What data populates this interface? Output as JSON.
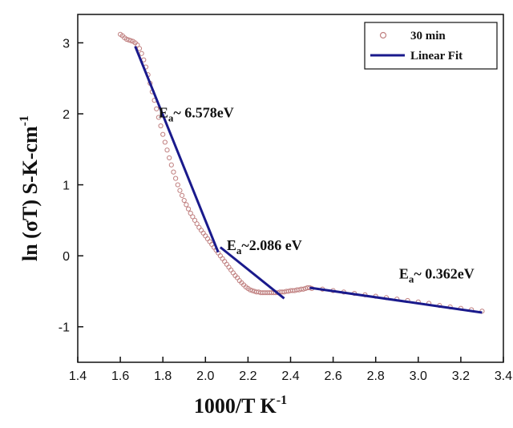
{
  "chart_data": {
    "type": "scatter",
    "xlabel": "1000/T K",
    "xlabel_sup": "-1",
    "ylabel": "ln (σT) S-K-cm",
    "ylabel_sup": "-1",
    "xlim": [
      1.4,
      3.4
    ],
    "ylim": [
      -1.5,
      3.4
    ],
    "xticks": [
      "1.4",
      "1.6",
      "1.8",
      "2.0",
      "2.2",
      "2.4",
      "2.6",
      "2.8",
      "3.0",
      "3.2",
      "3.4"
    ],
    "yticks": [
      "-1",
      "0",
      "1",
      "2",
      "3"
    ],
    "grid": false,
    "legend_position": "top-right",
    "legend": [
      {
        "label": "30 min",
        "marker": "circle",
        "color": "#c08080"
      },
      {
        "label": "Linear Fit",
        "marker": "line",
        "color": "#1a1a8c"
      }
    ],
    "colors": {
      "data": "#c08080",
      "fit": "#1a1a8c",
      "axis": "#111111"
    },
    "series": [
      {
        "name": "30 min",
        "points": [
          [
            1.6,
            3.12
          ],
          [
            1.61,
            3.1
          ],
          [
            1.62,
            3.07
          ],
          [
            1.63,
            3.05
          ],
          [
            1.64,
            3.04
          ],
          [
            1.65,
            3.03
          ],
          [
            1.66,
            3.02
          ],
          [
            1.67,
            3.0
          ],
          [
            1.68,
            2.97
          ],
          [
            1.69,
            2.92
          ],
          [
            1.7,
            2.85
          ],
          [
            1.71,
            2.76
          ],
          [
            1.72,
            2.66
          ],
          [
            1.73,
            2.55
          ],
          [
            1.74,
            2.43
          ],
          [
            1.75,
            2.31
          ],
          [
            1.76,
            2.19
          ],
          [
            1.77,
            2.07
          ],
          [
            1.78,
            1.95
          ],
          [
            1.79,
            1.83
          ],
          [
            1.8,
            1.71
          ],
          [
            1.81,
            1.6
          ],
          [
            1.82,
            1.49
          ],
          [
            1.83,
            1.38
          ],
          [
            1.84,
            1.28
          ],
          [
            1.85,
            1.18
          ],
          [
            1.86,
            1.09
          ],
          [
            1.87,
            1.0
          ],
          [
            1.88,
            0.92
          ],
          [
            1.89,
            0.85
          ],
          [
            1.9,
            0.78
          ],
          [
            1.91,
            0.72
          ],
          [
            1.92,
            0.66
          ],
          [
            1.93,
            0.6
          ],
          [
            1.94,
            0.55
          ],
          [
            1.95,
            0.5
          ],
          [
            1.96,
            0.45
          ],
          [
            1.97,
            0.4
          ],
          [
            1.98,
            0.36
          ],
          [
            1.99,
            0.32
          ],
          [
            2.0,
            0.28
          ],
          [
            2.01,
            0.24
          ],
          [
            2.02,
            0.2
          ],
          [
            2.03,
            0.16
          ],
          [
            2.04,
            0.12
          ],
          [
            2.05,
            0.08
          ],
          [
            2.06,
            0.04
          ],
          [
            2.07,
            0.0
          ],
          [
            2.08,
            -0.04
          ],
          [
            2.09,
            -0.08
          ],
          [
            2.1,
            -0.12
          ],
          [
            2.11,
            -0.16
          ],
          [
            2.12,
            -0.2
          ],
          [
            2.13,
            -0.24
          ],
          [
            2.14,
            -0.28
          ],
          [
            2.15,
            -0.31
          ],
          [
            2.16,
            -0.35
          ],
          [
            2.17,
            -0.38
          ],
          [
            2.18,
            -0.41
          ],
          [
            2.19,
            -0.44
          ],
          [
            2.2,
            -0.46
          ],
          [
            2.21,
            -0.48
          ],
          [
            2.22,
            -0.49
          ],
          [
            2.23,
            -0.5
          ],
          [
            2.24,
            -0.51
          ],
          [
            2.25,
            -0.51
          ],
          [
            2.26,
            -0.52
          ],
          [
            2.27,
            -0.52
          ],
          [
            2.28,
            -0.52
          ],
          [
            2.29,
            -0.52
          ],
          [
            2.3,
            -0.52
          ],
          [
            2.31,
            -0.52
          ],
          [
            2.32,
            -0.52
          ],
          [
            2.33,
            -0.52
          ],
          [
            2.34,
            -0.52
          ],
          [
            2.35,
            -0.51
          ],
          [
            2.36,
            -0.51
          ],
          [
            2.37,
            -0.51
          ],
          [
            2.38,
            -0.5
          ],
          [
            2.39,
            -0.5
          ],
          [
            2.4,
            -0.49
          ],
          [
            2.41,
            -0.49
          ],
          [
            2.42,
            -0.49
          ],
          [
            2.43,
            -0.48
          ],
          [
            2.44,
            -0.48
          ],
          [
            2.45,
            -0.47
          ],
          [
            2.46,
            -0.47
          ],
          [
            2.47,
            -0.46
          ],
          [
            2.48,
            -0.45
          ],
          [
            2.49,
            -0.45
          ],
          [
            2.5,
            -0.46
          ],
          [
            2.55,
            -0.47
          ],
          [
            2.6,
            -0.49
          ],
          [
            2.65,
            -0.51
          ],
          [
            2.7,
            -0.53
          ],
          [
            2.75,
            -0.55
          ],
          [
            2.8,
            -0.57
          ],
          [
            2.85,
            -0.59
          ],
          [
            2.9,
            -0.61
          ],
          [
            2.95,
            -0.63
          ],
          [
            3.0,
            -0.65
          ],
          [
            3.05,
            -0.67
          ],
          [
            3.1,
            -0.7
          ],
          [
            3.15,
            -0.72
          ],
          [
            3.2,
            -0.74
          ],
          [
            3.25,
            -0.76
          ],
          [
            3.3,
            -0.78
          ]
        ]
      }
    ],
    "fits": [
      {
        "name": "Linear Fit",
        "x": [
          1.67,
          2.06
        ],
        "y": [
          2.95,
          0.05
        ],
        "label": "E",
        "label_sub": "a",
        "label_rest": "~ 6.578eV",
        "label_at": [
          1.78,
          1.95
        ]
      },
      {
        "name": "Linear Fit",
        "x": [
          2.07,
          2.37
        ],
        "y": [
          0.12,
          -0.6
        ],
        "label": "E",
        "label_sub": "a",
        "label_rest": "~2.086 eV",
        "label_at": [
          2.1,
          0.08
        ]
      },
      {
        "name": "Linear Fit",
        "x": [
          2.49,
          3.3
        ],
        "y": [
          -0.45,
          -0.8
        ],
        "label": "E",
        "label_sub": "a",
        "label_rest": "~ 0.362eV",
        "label_at": [
          2.91,
          -0.32
        ]
      }
    ]
  }
}
